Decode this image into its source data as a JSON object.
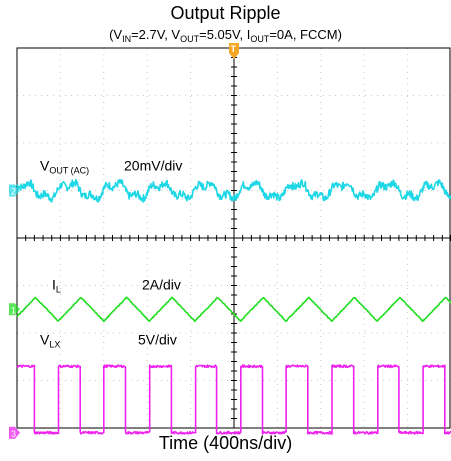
{
  "chart_data": {
    "type": "line",
    "title": "Output Ripple",
    "subtitle_parts": [
      {
        "text": "(V"
      },
      {
        "sub": "IN"
      },
      {
        "text": "=2.7V, V"
      },
      {
        "sub": "OUT"
      },
      {
        "text": "=5.05V, I"
      },
      {
        "sub": "OUT"
      },
      {
        "text": "=0A, FCCM)"
      }
    ],
    "xlabel": "Time (400ns/div)",
    "grid": true,
    "x_divisions": 10,
    "y_divisions": 8,
    "trigger_marker": "T",
    "series": [
      {
        "main": "V",
        "sub": "OUT (AC)",
        "scale": "20mV/div",
        "channel": "2",
        "color": "#1ED7E6",
        "waveform": "ripple",
        "offset_div": 5.0,
        "amplitude_div": 0.14,
        "period_div": 1.05
      },
      {
        "main": "I",
        "sub": "L",
        "scale": "2A/div",
        "channel": "1",
        "color": "#22DD22",
        "waveform": "triangle",
        "offset_div": 2.5,
        "amplitude_div": 0.25,
        "period_div": 1.05
      },
      {
        "main": "V",
        "sub": "LX",
        "scale": "5V/div",
        "channel": "3",
        "color": "#EE22EE",
        "waveform": "square",
        "low_div": -0.1,
        "high_div": 1.3,
        "period_div": 1.05
      }
    ]
  }
}
